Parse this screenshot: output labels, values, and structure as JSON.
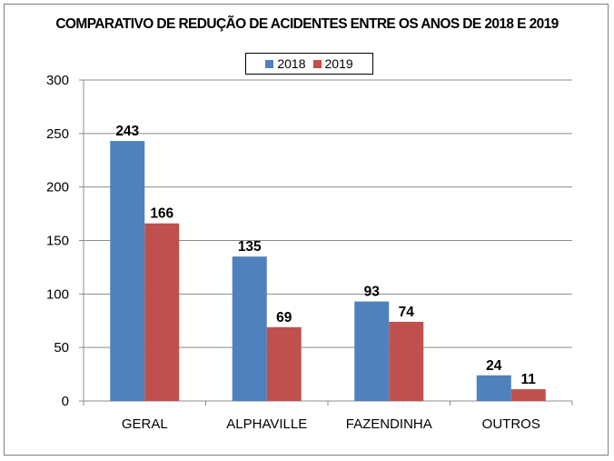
{
  "chart_data": {
    "type": "bar",
    "title": "COMPARATIVO DE REDUÇÃO DE ACIDENTES ENTRE OS ANOS DE 2018 E 2019",
    "xlabel": "",
    "ylabel": "",
    "categories": [
      "GERAL",
      "ALPHAVILLE",
      "FAZENDINHA",
      "OUTROS"
    ],
    "series": [
      {
        "name": "2018",
        "color": "#4F81BD",
        "values": [
          243,
          135,
          93,
          24
        ]
      },
      {
        "name": "2019",
        "color": "#C0504D",
        "values": [
          166,
          69,
          74,
          11
        ]
      }
    ],
    "ylim": [
      0,
      300
    ],
    "yticks": [
      0,
      50,
      100,
      150,
      200,
      250,
      300
    ],
    "grid": true,
    "legend_position": "top-center",
    "data_labels": true
  }
}
